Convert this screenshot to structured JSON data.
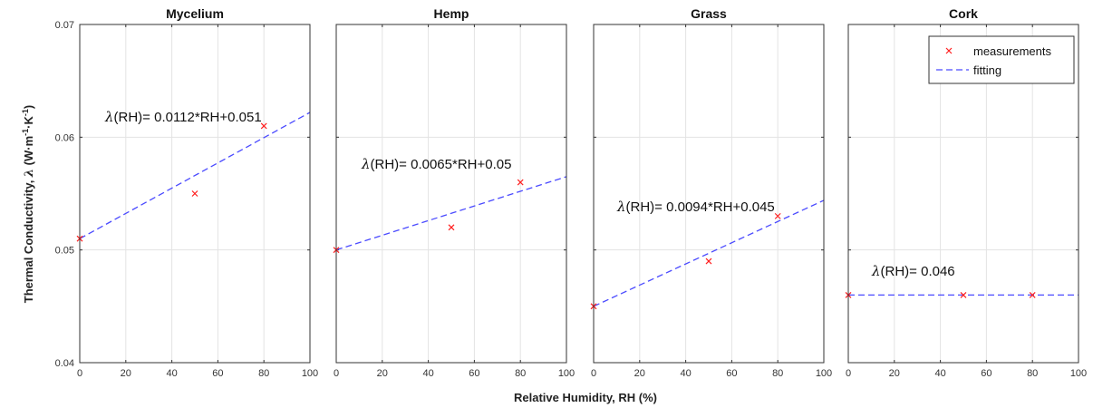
{
  "chart_data": {
    "type": "scatter",
    "xlabel": "Relative Humidity, RH (%)",
    "ylabel_parts": [
      "Thermal Conductivity, ",
      "λ",
      " (W·m",
      "-1",
      "·K",
      "-1",
      ")"
    ],
    "xlim": [
      0,
      100
    ],
    "ylim": [
      0.04,
      0.07
    ],
    "xticks": [
      "0",
      "20",
      "40",
      "60",
      "80",
      "100"
    ],
    "yticks": [
      "0.04",
      "0.05",
      "0.06",
      "0.07"
    ],
    "grid": true,
    "legend": {
      "placement": "top-right",
      "entries": [
        "measurements",
        "fitting"
      ]
    },
    "colors": {
      "measurements": "#ff2020",
      "fitting": "#4a4aff"
    },
    "panels": [
      {
        "title": "Mycelium",
        "measurements": {
          "x": [
            0,
            50,
            80
          ],
          "y": [
            0.051,
            0.055,
            0.061
          ]
        },
        "fit": {
          "slope": 0.000112,
          "intercept": 0.051
        },
        "equation_prefix": "λ",
        "equation_rest": "(RH)= 0.0112*RH+0.051"
      },
      {
        "title": "Hemp",
        "measurements": {
          "x": [
            0,
            50,
            80
          ],
          "y": [
            0.05,
            0.052,
            0.056
          ]
        },
        "fit": {
          "slope": 6.5e-05,
          "intercept": 0.05
        },
        "equation_prefix": "λ",
        "equation_rest": "(RH)= 0.0065*RH+0.05"
      },
      {
        "title": "Grass",
        "measurements": {
          "x": [
            0,
            50,
            80
          ],
          "y": [
            0.045,
            0.049,
            0.053
          ]
        },
        "fit": {
          "slope": 9.4e-05,
          "intercept": 0.045
        },
        "equation_prefix": "λ",
        "equation_rest": "(RH)= 0.0094*RH+0.045"
      },
      {
        "title": "Cork",
        "measurements": {
          "x": [
            0,
            50,
            80
          ],
          "y": [
            0.046,
            0.046,
            0.046
          ]
        },
        "fit": {
          "slope": 0,
          "intercept": 0.046
        },
        "equation_prefix": "λ",
        "equation_rest": "(RH)= 0.046"
      }
    ]
  }
}
